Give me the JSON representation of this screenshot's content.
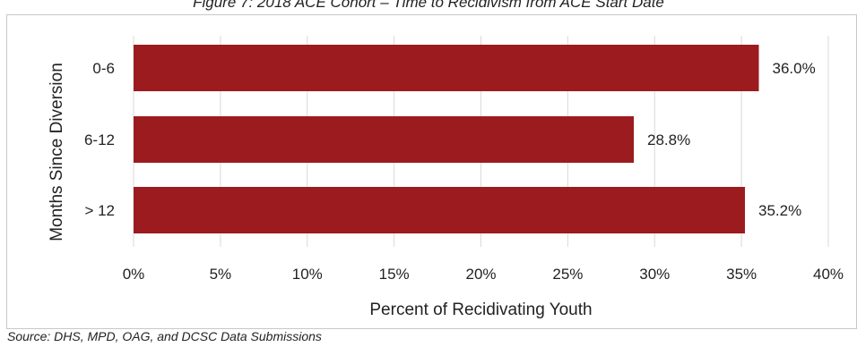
{
  "title": "Figure 7: 2018 ACE Cohort – Time to Recidivism from ACE Start Date",
  "source": "Source: DHS, MPD, OAG, and DCSC Data Submissions",
  "chart_data": {
    "type": "bar",
    "orientation": "horizontal",
    "title": "Figure 7: 2018 ACE Cohort – Time to Recidivism from ACE Start Date",
    "xlabel": "Percent of Recidivating Youth",
    "ylabel": "Months Since Diversion",
    "categories": [
      "0-6",
      "6-12",
      "> 12"
    ],
    "values": [
      36.0,
      28.8,
      35.2
    ],
    "data_labels": [
      "36.0%",
      "28.8%",
      "35.2%"
    ],
    "xlim": [
      0,
      40
    ],
    "xticks": [
      0,
      5,
      10,
      15,
      20,
      25,
      30,
      35,
      40
    ],
    "xtick_labels": [
      "0%",
      "5%",
      "10%",
      "15%",
      "20%",
      "25%",
      "30%",
      "35%",
      "40%"
    ],
    "grid": true,
    "legend": "none",
    "bar_color": "#9b1b1f"
  }
}
